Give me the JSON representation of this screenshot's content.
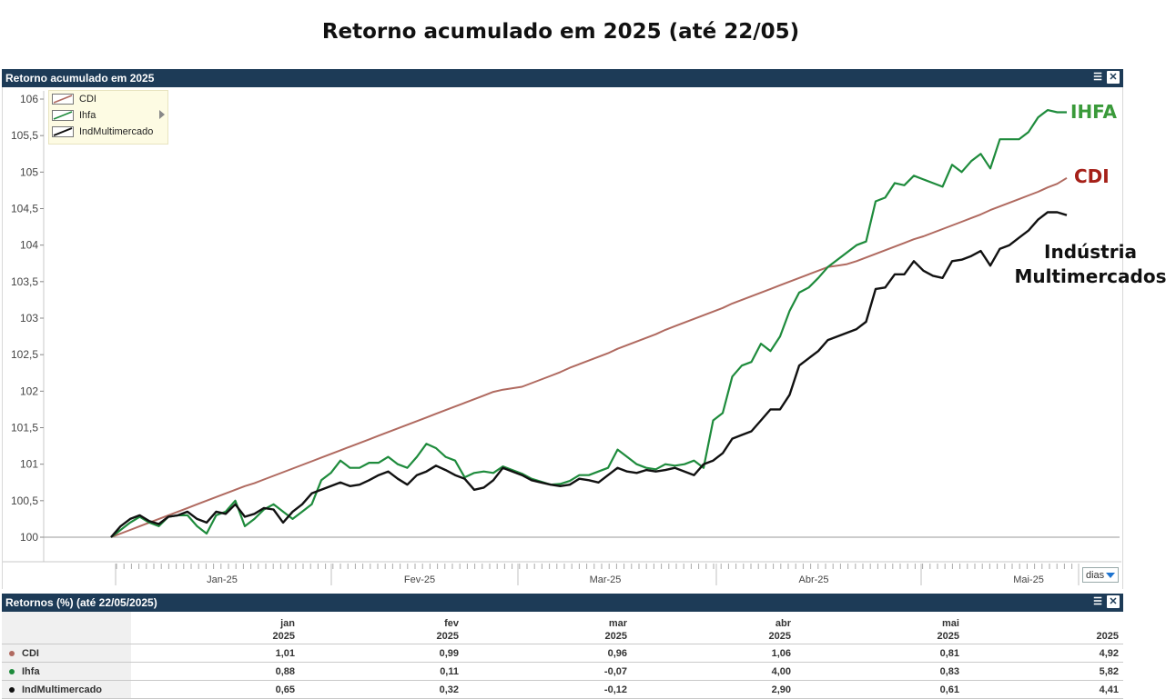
{
  "page": {
    "title": "Retorno acumulado em 2025 (até 22/05)"
  },
  "chart_panel": {
    "title": "Retorno acumulado em 2025",
    "menu_icon": "menu-icon",
    "close_icon": "close-icon"
  },
  "series_labels": {
    "ihfa": "IHFA",
    "cdi": "CDI",
    "ind_line1": "Indústria",
    "ind_line2": "Multimercados"
  },
  "period_selector": {
    "value": "dias"
  },
  "colors": {
    "cdi": "#b06a60",
    "ihfa": "#1e8b3c",
    "ind": "#111111",
    "panel_bar": "#1d3b57",
    "ihfa_label": "#3a9a3a",
    "cdi_label": "#a52018",
    "ind_label": "#111111"
  },
  "chart_data": {
    "type": "line",
    "title": "Retorno acumulado em 2025",
    "ylim": [
      100,
      106
    ],
    "yticks": [
      "100",
      "100,5",
      "101",
      "101,5",
      "102",
      "102,5",
      "103",
      "103,5",
      "104",
      "104,5",
      "105",
      "105,5",
      "106"
    ],
    "x_month_labels": [
      "Jan-25",
      "Fev-25",
      "Mar-25",
      "Abr-25",
      "Mai-25"
    ],
    "legend": {
      "position": "top-left",
      "entries": [
        "CDI",
        "Ihfa",
        "IndMultimercado"
      ]
    },
    "grid": false,
    "series": [
      {
        "name": "CDI",
        "color": "#b06a60",
        "values": [
          100.0,
          100.05,
          100.1,
          100.15,
          100.2,
          100.25,
          100.3,
          100.35,
          100.4,
          100.45,
          100.5,
          100.55,
          100.6,
          100.65,
          100.7,
          100.74,
          100.79,
          100.84,
          100.89,
          100.94,
          100.99,
          101.04,
          101.09,
          101.14,
          101.19,
          101.24,
          101.29,
          101.34,
          101.39,
          101.44,
          101.49,
          101.54,
          101.59,
          101.64,
          101.69,
          101.74,
          101.79,
          101.84,
          101.89,
          101.94,
          101.99,
          102.02,
          102.04,
          102.06,
          102.11,
          102.16,
          102.21,
          102.26,
          102.32,
          102.37,
          102.42,
          102.47,
          102.52,
          102.58,
          102.63,
          102.68,
          102.73,
          102.78,
          102.84,
          102.89,
          102.94,
          102.99,
          103.04,
          103.09,
          103.14,
          103.2,
          103.25,
          103.3,
          103.35,
          103.4,
          103.45,
          103.5,
          103.55,
          103.6,
          103.65,
          103.7,
          103.72,
          103.74,
          103.78,
          103.83,
          103.88,
          103.93,
          103.98,
          104.03,
          104.08,
          104.12,
          104.17,
          104.22,
          104.27,
          104.32,
          104.37,
          104.42,
          104.48,
          104.53,
          104.58,
          104.63,
          104.68,
          104.73,
          104.79,
          104.84,
          104.92
        ]
      },
      {
        "name": "Ihfa",
        "color": "#1e8b3c",
        "values": [
          100.0,
          100.1,
          100.2,
          100.28,
          100.2,
          100.15,
          100.28,
          100.3,
          100.3,
          100.15,
          100.05,
          100.3,
          100.35,
          100.5,
          100.15,
          100.25,
          100.38,
          100.45,
          100.35,
          100.25,
          100.35,
          100.45,
          100.78,
          100.88,
          101.05,
          100.95,
          100.95,
          101.02,
          101.02,
          101.1,
          101.0,
          100.95,
          101.1,
          101.28,
          101.22,
          101.1,
          101.05,
          100.82,
          100.88,
          100.9,
          100.88,
          100.97,
          100.92,
          100.87,
          100.8,
          100.76,
          100.72,
          100.73,
          100.77,
          100.85,
          100.85,
          100.9,
          100.95,
          101.2,
          101.1,
          101.0,
          100.95,
          100.93,
          101.0,
          100.98,
          101.0,
          101.05,
          100.95,
          101.6,
          101.7,
          102.2,
          102.35,
          102.4,
          102.65,
          102.55,
          102.75,
          103.1,
          103.35,
          103.42,
          103.55,
          103.7,
          103.8,
          103.9,
          104.0,
          104.05,
          104.6,
          104.65,
          104.85,
          104.82,
          104.95,
          104.9,
          104.85,
          104.8,
          105.1,
          105.0,
          105.15,
          105.25,
          105.05,
          105.45,
          105.45,
          105.45,
          105.55,
          105.75,
          105.85,
          105.82,
          105.82
        ]
      },
      {
        "name": "IndMultimercado",
        "color": "#111111",
        "values": [
          100.0,
          100.15,
          100.25,
          100.3,
          100.22,
          100.18,
          100.28,
          100.3,
          100.35,
          100.25,
          100.2,
          100.35,
          100.32,
          100.45,
          100.28,
          100.32,
          100.4,
          100.38,
          100.2,
          100.35,
          100.45,
          100.6,
          100.65,
          100.7,
          100.75,
          100.7,
          100.72,
          100.78,
          100.85,
          100.9,
          100.8,
          100.72,
          100.85,
          100.9,
          100.98,
          100.92,
          100.85,
          100.8,
          100.65,
          100.68,
          100.78,
          100.95,
          100.9,
          100.85,
          100.78,
          100.75,
          100.72,
          100.7,
          100.72,
          100.8,
          100.78,
          100.75,
          100.85,
          100.95,
          100.9,
          100.88,
          100.92,
          100.9,
          100.92,
          100.95,
          100.9,
          100.85,
          101.0,
          101.05,
          101.15,
          101.35,
          101.4,
          101.45,
          101.6,
          101.75,
          101.75,
          101.95,
          102.35,
          102.45,
          102.55,
          102.7,
          102.75,
          102.8,
          102.85,
          102.95,
          103.4,
          103.42,
          103.6,
          103.6,
          103.78,
          103.65,
          103.58,
          103.55,
          103.78,
          103.8,
          103.85,
          103.92,
          103.72,
          103.95,
          104.0,
          104.1,
          104.2,
          104.35,
          104.45,
          104.45,
          104.41
        ]
      }
    ]
  },
  "table_panel": {
    "title": "Retornos (%) (até 22/05/2025)"
  },
  "table": {
    "headers": [
      {
        "line1": "jan",
        "line2": "2025"
      },
      {
        "line1": "fev",
        "line2": "2025"
      },
      {
        "line1": "mar",
        "line2": "2025"
      },
      {
        "line1": "abr",
        "line2": "2025"
      },
      {
        "line1": "mai",
        "line2": "2025"
      },
      {
        "line1": "",
        "line2": "2025"
      }
    ],
    "rows": [
      {
        "name": "CDI",
        "color": "#b06a60",
        "values": [
          "1,01",
          "0,99",
          "0,96",
          "1,06",
          "0,81",
          "4,92"
        ]
      },
      {
        "name": "Ihfa",
        "color": "#1e8b3c",
        "values": [
          "0,88",
          "0,11",
          "-0,07",
          "4,00",
          "0,83",
          "5,82"
        ]
      },
      {
        "name": "IndMultimercado",
        "color": "#111111",
        "values": [
          "0,65",
          "0,32",
          "-0,12",
          "2,90",
          "0,61",
          "4,41"
        ]
      }
    ]
  }
}
